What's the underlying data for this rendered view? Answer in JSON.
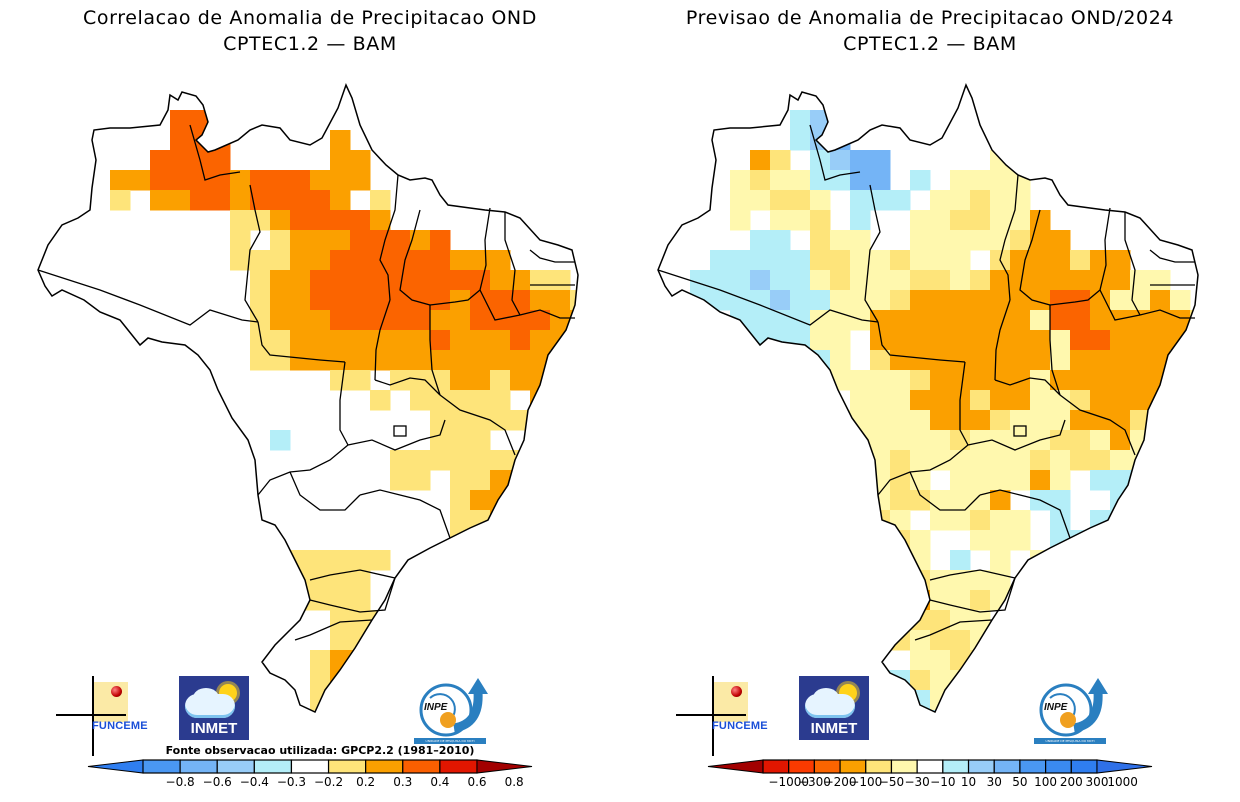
{
  "left_panel": {
    "title_line1": "Correlacao de Anomalia de Precipitacao OND",
    "title_line2": "CPTEC1.2 — BAM",
    "source_note": "Fonte observacao utilizada: GPCP2.2 (1981–2010)",
    "colorbar": {
      "labels": [
        "−0.8",
        "−0.6",
        "−0.4",
        "−0.3",
        "−0.2",
        "0.2",
        "0.3",
        "0.4",
        "0.6",
        "0.8"
      ],
      "colors": [
        "#2f7ef0",
        "#4a97f2",
        "#74b4f6",
        "#98cdf8",
        "#b4eef8",
        "#ffffff",
        "#fee47a",
        "#fba000",
        "#fb5f00",
        "#e11600",
        "#a20000"
      ]
    },
    "field_legend": {
      "0": "#ffffff",
      "1": "#fee47a",
      "2": "#fba000",
      "3": "#fb6400",
      "b": "#b4eef8"
    },
    "field_rows": [
      "............................",
      "............................",
      ".......33...................",
      ".......333.....2............",
      "......3333.....22...........",
      "....2233332333222...........",
      "....1.2233233332.1..........",
      "..........11233332..........",
      "..........1.122233323.......",
      "..........11122333333222....",
      "...........1223333333332211.",
      "...........12233333332333221",
      "...........12223333322333322",
      "...........1122222223222322.",
      "...........1122222222222221.",
      "...1.1.........11.111221221.",
      "...1111..........1.11111.21.",
      "....11..............1111121.",
      "....12......b.......111..12.",
      "..................1111111.1.",
      "..................11.1122...",
      ".....................12222..",
      ".....................112221.",
      ".....................1.1223.",
      ".............11111....12.1.",
      ".............1111...11.....",
      ".............1111..111.....",
      "...............111.........",
      "...............11121.......",
      "..............1222.........",
      "..............12232........",
      "..............12222........",
      "...............222........."
    ]
  },
  "right_panel": {
    "title_line1": "Previsao de Anomalia de Precipitacao OND/2024",
    "title_line2": "CPTEC1.2 — BAM",
    "colorbar": {
      "labels": [
        "−1000",
        "−300",
        "−200",
        "−100",
        "−50",
        "−30",
        "−10",
        "10",
        "30",
        "50",
        "100",
        "200",
        "300",
        "1000"
      ],
      "colors": [
        "#a20000",
        "#e11600",
        "#fb3a00",
        "#fb6400",
        "#fba000",
        "#fee47a",
        "#fff8ae",
        "#ffffff",
        "#b4eef8",
        "#98cdf8",
        "#74b4f6",
        "#4a97f2",
        "#3a8af0",
        "#2f7ef0",
        "#2f70e8"
      ]
    },
    "field_legend": {
      "0": "#ffffff",
      "y": "#fff8ae",
      "1": "#fee47a",
      "2": "#fba000",
      "3": "#fb6400",
      "b": "#b4eef8",
      "c": "#98cdf8",
      "d": "#74b4f6"
    },
    "field_rows": [
      "............................",
      "............................",
      ".......bc...........3.......",
      ".......bcd..........y.......",
      ".....21.bcdd.....yy.........",
      "....y1yybbdd.b.yyyy.........",
      "....yy11y.bbb.yy1yy.........",
      "....y.yy1.b..yy11yy2........",
      ".....bb.1yy..yyyyy122.......",
      "...bbbbb11yy1yyy.1222122....",
      "..bbbcbby1yyy11y12222222yy..",
      "..bbbbcbbyyy12222222332yy2y.",
      "..b.bbbbyyy22222222y33222221",
      "..bbbbbbyy.222222222y332222y",
      ".cbb..bbby.122222222y22222y.",
      "..c.bbbb.yyyy122222y222222yy",
      "....bb..y.yyy222122yy12222y.",
      "......b.yyyyyy2221yyy2221yy.",
      ".......yyyyyyyy1yyyy11y2y.b.",
      "........yyyy1yyyyyy1y11yyb..",
      "........yyyy1y.yyyy2y.bbbb..",
      "........b.yy11yyy2.bb..bcc..",
      "........1y11y.yy1yy.b.bbcd..",
      "........1yy11y..yyy.bbbcc...",
      ".........y21yy.b.y.yyyyb....",
      ".........y2221yyyy.......b..",
      "..........y222yy1y..........",
      "..........y2211yy...........",
      "...........y1y11y...........",
      ".............yy11...........",
      "..........bbb1yy............",
      "..........ccbbyy............",
      "...........ccbb............."
    ]
  }
}
